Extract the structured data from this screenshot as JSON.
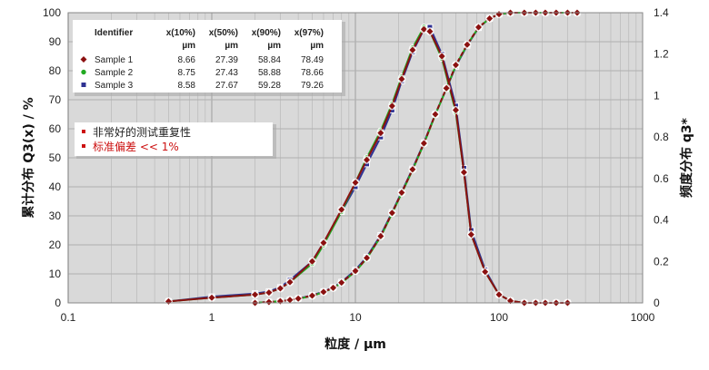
{
  "chart_data": {
    "type": "line",
    "xlabel": "粒度 / µm",
    "ylabel_left": "累计分布 Q3(x) / %",
    "ylabel_right": "频度分布 q3*",
    "x_scale": "log",
    "xlim": [
      0.1,
      1000
    ],
    "x_ticks": [
      "0.1",
      "1",
      "10",
      "100",
      "1000"
    ],
    "ylim_left": [
      0,
      100
    ],
    "y_ticks_left": [
      "0",
      "10",
      "20",
      "30",
      "40",
      "50",
      "60",
      "70",
      "80",
      "90",
      "100"
    ],
    "ylim_right": [
      0,
      1.4
    ],
    "y_ticks_right": [
      "0",
      "0.2",
      "0.4",
      "0.6",
      "0.8",
      "1",
      "1.2",
      "1.4"
    ],
    "grid": true,
    "background": "#d9d9d9",
    "cumulative_x": [
      2,
      2.5,
      3,
      3.5,
      4,
      5,
      6,
      7,
      8,
      10,
      12,
      15,
      18,
      21,
      25,
      30,
      36,
      43,
      50,
      60,
      72,
      86,
      100,
      120,
      150,
      180,
      210,
      250,
      300,
      350
    ],
    "density_x": [
      0.5,
      1,
      2,
      2.5,
      3,
      3.5,
      5,
      6,
      8,
      10,
      12,
      15,
      18,
      21,
      25,
      30,
      33,
      40,
      50,
      57,
      64,
      80,
      100,
      120,
      150,
      180,
      210,
      250,
      300
    ],
    "series": [
      {
        "name": "Sample 1",
        "color": "#8b1010",
        "marker": "diamond",
        "cumulative": [
          0,
          0.3,
          0.6,
          1,
          1.5,
          2.5,
          3.8,
          5.2,
          7,
          11,
          15.5,
          23,
          31,
          38,
          46,
          55,
          65,
          74,
          82,
          89,
          95,
          98,
          99.5,
          100,
          100,
          100,
          100,
          100,
          100,
          100
        ],
        "density": [
          0.007,
          0.025,
          0.04,
          0.05,
          0.07,
          0.1,
          0.2,
          0.29,
          0.45,
          0.58,
          0.69,
          0.82,
          0.95,
          1.08,
          1.22,
          1.32,
          1.31,
          1.19,
          0.93,
          0.63,
          0.33,
          0.15,
          0.04,
          0.01,
          0,
          0,
          0,
          0,
          0
        ]
      },
      {
        "name": "Sample 2",
        "color": "#22aa22",
        "marker": "circle",
        "cumulative": [
          0,
          0.3,
          0.6,
          1,
          1.4,
          2.4,
          3.7,
          5.1,
          6.9,
          10.8,
          15.3,
          22.8,
          30.8,
          37.8,
          45.8,
          54.8,
          64.8,
          73.8,
          81.8,
          88.9,
          94.9,
          98,
          99.5,
          100,
          100,
          100,
          100,
          100,
          100,
          100
        ],
        "density": [
          0.007,
          0.025,
          0.04,
          0.05,
          0.07,
          0.1,
          0.19,
          0.28,
          0.44,
          0.58,
          0.7,
          0.83,
          0.96,
          1.09,
          1.23,
          1.33,
          1.31,
          1.18,
          0.92,
          0.63,
          0.33,
          0.15,
          0.04,
          0.01,
          0,
          0,
          0,
          0,
          0
        ]
      },
      {
        "name": "Sample 3",
        "color": "#2e3192",
        "marker": "square",
        "cumulative": [
          0,
          0.3,
          0.6,
          1,
          1.5,
          2.6,
          3.9,
          5.3,
          7.2,
          11.3,
          15.8,
          23.3,
          31.2,
          38.2,
          46.2,
          55.2,
          65,
          73.8,
          81.5,
          88.7,
          94.8,
          98,
          99.5,
          100,
          100,
          100,
          100,
          100,
          100,
          100
        ],
        "density": [
          0.007,
          0.03,
          0.045,
          0.055,
          0.075,
          0.11,
          0.2,
          0.29,
          0.44,
          0.56,
          0.67,
          0.8,
          0.93,
          1.07,
          1.21,
          1.32,
          1.33,
          1.2,
          0.95,
          0.65,
          0.35,
          0.16,
          0.04,
          0.01,
          0,
          0,
          0,
          0,
          0
        ]
      }
    ]
  },
  "legend_table": {
    "headers": [
      "Identifier",
      "x(10%)",
      "x(50%)",
      "x(90%)",
      "x(97%)"
    ],
    "units": [
      "",
      "µm",
      "µm",
      "µm",
      "µm"
    ],
    "rows": [
      {
        "name": "Sample 1",
        "values": [
          "8.66",
          "27.39",
          "58.84",
          "78.49"
        ]
      },
      {
        "name": "Sample 2",
        "values": [
          "8.75",
          "27.43",
          "58.88",
          "78.66"
        ]
      },
      {
        "name": "Sample 3",
        "values": [
          "8.58",
          "27.67",
          "59.28",
          "79.26"
        ]
      }
    ]
  },
  "notes": {
    "line1": "非常好的测试重复性",
    "line2": "标准偏差 << 1%",
    "line1_color": "#222222",
    "line2_color": "#cc1111",
    "bullet_color": "#cc1111"
  }
}
